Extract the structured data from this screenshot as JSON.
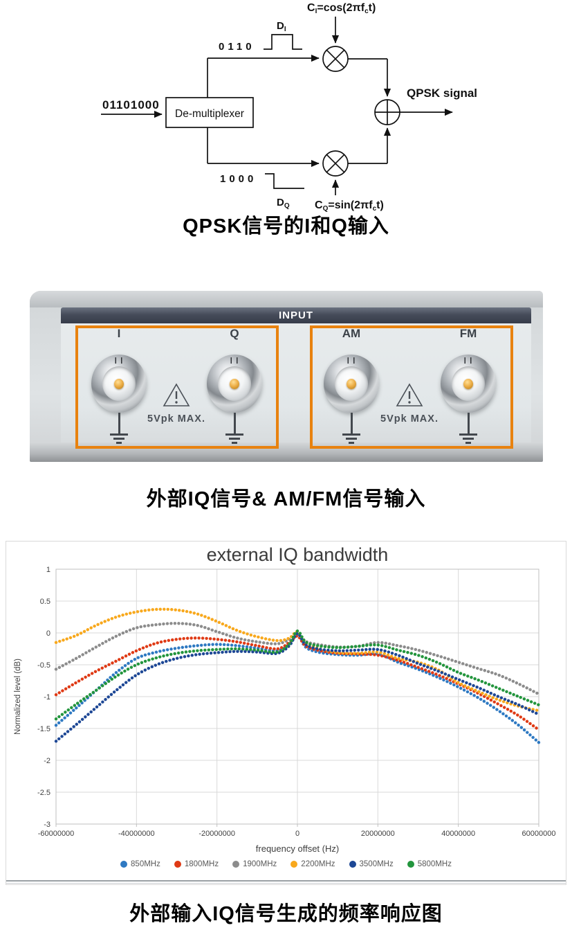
{
  "diagram": {
    "input_bits": "01101000",
    "demux_label": "De-multiplexer",
    "i_bits": "0110",
    "q_bits": "1000",
    "di_label": {
      "main": "D",
      "sub": "I"
    },
    "dq_label": {
      "main": "D",
      "sub": "Q"
    },
    "carrier_i": {
      "c": "C",
      "sub": "I",
      "eq": "=cos(2πf",
      "fsub": "c",
      "rest": "t)"
    },
    "carrier_q": {
      "c": "C",
      "sub": "Q",
      "eq": "=sin(2πf",
      "fsub": "c",
      "rest": "t)"
    },
    "output_label": "QPSK signal"
  },
  "caption1": "QPSK信号的I和Q输入",
  "panel": {
    "header": "INPUT",
    "accent_color": "#e8820f",
    "notch": "❙❙",
    "groups": [
      {
        "connectors": [
          {
            "label": "I"
          },
          {
            "label": "Q"
          }
        ],
        "warning": "5Vpk  MAX."
      },
      {
        "connectors": [
          {
            "label": "AM"
          },
          {
            "label": "FM"
          }
        ],
        "warning": "5Vpk  MAX."
      }
    ]
  },
  "caption2": "外部IQ信号& AM/FM信号输入",
  "chart_data": {
    "type": "line",
    "title": "external IQ bandwidth",
    "xlabel": "frequency offset (Hz)",
    "ylabel": "Normalized level (dB)",
    "xlim_mhz": [
      -60,
      60
    ],
    "ylim": [
      -3,
      1
    ],
    "grid": true,
    "legend_position": "bottom",
    "x_tick_labels": [
      "-60000000",
      "-40000000",
      "-20000000",
      "0",
      "20000000",
      "40000000",
      "60000000"
    ],
    "x_ticks_mhz": [
      -60,
      -40,
      -20,
      0,
      20,
      40,
      60
    ],
    "y_ticks": [
      1,
      0.5,
      0,
      -0.5,
      -1,
      -1.5,
      -2,
      -2.5,
      -3
    ],
    "y_tick_labels": [
      "1",
      "0.5",
      "0",
      "-0.5",
      "-1",
      "-1.5",
      "-2",
      "-2.5",
      "-3"
    ],
    "x_mhz": [
      -60,
      -55,
      -50,
      -45,
      -40,
      -35,
      -30,
      -25,
      -20,
      -15,
      -10,
      -5,
      -2,
      0,
      2,
      5,
      10,
      15,
      20,
      25,
      30,
      35,
      40,
      45,
      50,
      55,
      60
    ],
    "series": [
      {
        "name": "850MHz",
        "color": "#2e79c2",
        "values": [
          -1.45,
          -1.18,
          -0.9,
          -0.62,
          -0.4,
          -0.3,
          -0.24,
          -0.2,
          -0.18,
          -0.2,
          -0.24,
          -0.28,
          -0.18,
          -0.03,
          -0.22,
          -0.3,
          -0.34,
          -0.35,
          -0.33,
          -0.46,
          -0.57,
          -0.7,
          -0.85,
          -1.02,
          -1.22,
          -1.45,
          -1.72
        ]
      },
      {
        "name": "1800MHz",
        "color": "#df3a15",
        "values": [
          -0.97,
          -0.78,
          -0.6,
          -0.44,
          -0.28,
          -0.16,
          -0.1,
          -0.08,
          -0.1,
          -0.14,
          -0.2,
          -0.25,
          -0.15,
          -0.05,
          -0.2,
          -0.27,
          -0.32,
          -0.33,
          -0.35,
          -0.43,
          -0.54,
          -0.66,
          -0.8,
          -0.95,
          -1.12,
          -1.3,
          -1.52
        ]
      },
      {
        "name": "1900MHz",
        "color": "#8c8c8c",
        "values": [
          -0.57,
          -0.4,
          -0.22,
          -0.05,
          0.08,
          0.13,
          0.15,
          0.12,
          0.02,
          -0.08,
          -0.14,
          -0.17,
          -0.1,
          -0.01,
          -0.13,
          -0.18,
          -0.22,
          -0.21,
          -0.15,
          -0.2,
          -0.27,
          -0.36,
          -0.46,
          -0.56,
          -0.66,
          -0.8,
          -0.96
        ]
      },
      {
        "name": "2200MHz",
        "color": "#f8a81c",
        "values": [
          -0.15,
          -0.04,
          0.12,
          0.25,
          0.33,
          0.37,
          0.36,
          0.3,
          0.18,
          0.04,
          -0.06,
          -0.12,
          -0.08,
          0.02,
          -0.14,
          -0.24,
          -0.31,
          -0.32,
          -0.3,
          -0.4,
          -0.46,
          -0.58,
          -0.78,
          -0.92,
          -1.05,
          -1.15,
          -1.22
        ]
      },
      {
        "name": "3500MHz",
        "color": "#1d4795",
        "values": [
          -1.7,
          -1.44,
          -1.17,
          -0.9,
          -0.66,
          -0.5,
          -0.4,
          -0.34,
          -0.31,
          -0.29,
          -0.3,
          -0.32,
          -0.2,
          -0.01,
          -0.18,
          -0.25,
          -0.28,
          -0.27,
          -0.26,
          -0.35,
          -0.48,
          -0.6,
          -0.73,
          -0.86,
          -1.0,
          -1.13,
          -1.28
        ]
      },
      {
        "name": "5800MHz",
        "color": "#23953d",
        "values": [
          -1.35,
          -1.12,
          -0.9,
          -0.68,
          -0.5,
          -0.39,
          -0.32,
          -0.28,
          -0.26,
          -0.25,
          -0.27,
          -0.3,
          -0.17,
          0.03,
          -0.14,
          -0.2,
          -0.23,
          -0.21,
          -0.19,
          -0.27,
          -0.35,
          -0.47,
          -0.62,
          -0.74,
          -0.87,
          -1.0,
          -1.13
        ]
      }
    ]
  },
  "caption3": "外部输入IQ信号生成的频率响应图"
}
